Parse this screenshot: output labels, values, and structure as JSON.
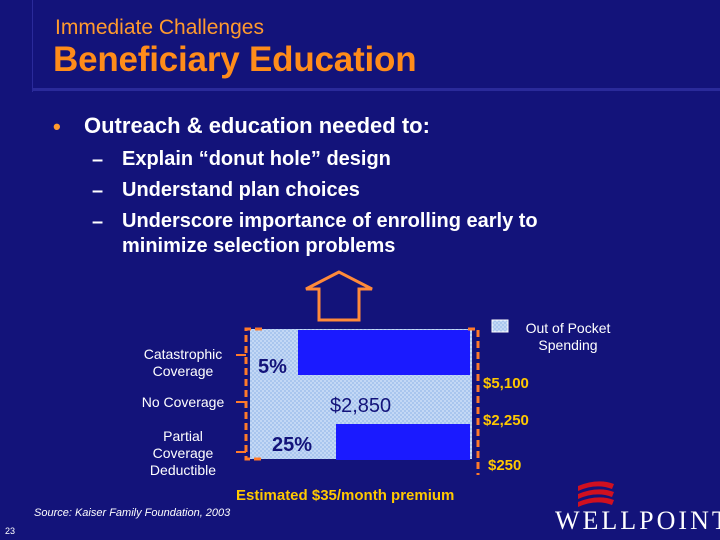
{
  "header": {
    "subtitle": "Immediate Challenges",
    "title": "Beneficiary Education"
  },
  "bullets": {
    "main": "Outreach & education needed to:",
    "dash": "–",
    "items": [
      "Explain “donut hole” design",
      "Understand plan choices",
      "Underscore importance of enrolling early to",
      "minimize selection problems"
    ]
  },
  "diagram": {
    "labels": {
      "catastrophic": [
        "Catastrophic",
        "Coverage"
      ],
      "no_coverage": "No Coverage",
      "partial": [
        "Partial",
        "Coverage",
        "Deductible"
      ]
    },
    "legend": [
      "Out of Pocket",
      "Spending"
    ],
    "pct_top": "5%",
    "pct_bottom": "25%",
    "donut_amount": "$2,850",
    "thresholds": [
      "$5,100",
      "$2,250",
      "$250"
    ],
    "premium": "Estimated $35/month premium",
    "colors": {
      "fill": "#1a1aff",
      "pattern": "#b8d2f2",
      "bracket": "#ff7a2a"
    }
  },
  "footer": {
    "source": "Source: Kaiser Family Foundation, 2003",
    "page_number": "23",
    "logo": "WELLPOINT"
  }
}
